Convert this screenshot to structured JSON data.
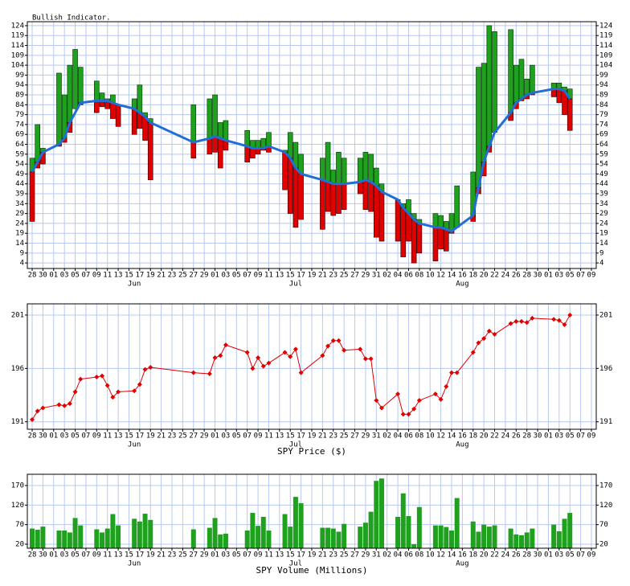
{
  "chart_data": [
    {
      "type": "range-bar",
      "title": "Bullish Indicator.",
      "x": [
        0,
        1,
        2,
        5,
        6,
        7,
        8,
        9,
        12,
        13,
        14,
        15,
        16,
        19,
        20,
        21,
        22,
        30,
        33,
        34,
        35,
        36,
        40,
        41,
        42,
        43,
        44,
        47,
        48,
        49,
        50,
        54,
        55,
        56,
        57,
        58,
        61,
        62,
        63,
        64,
        65,
        68,
        69,
        70,
        71,
        72,
        75,
        76,
        77,
        78,
        79,
        82,
        83,
        84,
        85,
        86,
        89,
        90,
        91,
        92,
        93,
        97,
        98,
        99,
        100
      ],
      "low": [
        25,
        52,
        54,
        63,
        65,
        70,
        82,
        84,
        80,
        83,
        82,
        77,
        73,
        69,
        72,
        66,
        46,
        57,
        59,
        60,
        52,
        61,
        55,
        57,
        59,
        61,
        60,
        41,
        29,
        22,
        26,
        21,
        30,
        28,
        29,
        31,
        39,
        31,
        30,
        17,
        15,
        15,
        7,
        15,
        4,
        9,
        5,
        11,
        10,
        19,
        22,
        25,
        39,
        48,
        60,
        70,
        76,
        82,
        86,
        87,
        89,
        88,
        85,
        79,
        71
      ],
      "high": [
        57,
        74,
        62,
        100,
        89,
        104,
        112,
        103,
        96,
        90,
        87,
        89,
        84,
        87,
        94,
        80,
        77,
        84,
        87,
        89,
        75,
        76,
        71,
        66,
        66,
        67,
        70,
        61,
        70,
        65,
        59,
        57,
        65,
        51,
        60,
        57,
        57,
        60,
        59,
        52,
        44,
        36,
        34,
        36,
        29,
        26,
        29,
        28,
        25,
        29,
        43,
        50,
        103,
        105,
        124,
        121,
        122,
        104,
        107,
        97,
        104,
        95,
        95,
        93,
        92
      ],
      "average": [
        50,
        55,
        60,
        64,
        67,
        75,
        80,
        85,
        86,
        86,
        86,
        85,
        84,
        82,
        80,
        78,
        75,
        65,
        67,
        68,
        67,
        66,
        63,
        62,
        62,
        62,
        63,
        60,
        57,
        52,
        49,
        46,
        45,
        44,
        44,
        44,
        45,
        46,
        45,
        43,
        40,
        36,
        32,
        29,
        26,
        24,
        22,
        22,
        21,
        20,
        22,
        28,
        42,
        55,
        63,
        70,
        80,
        85,
        87,
        89,
        90,
        92,
        92,
        91,
        87
      ],
      "up_color": "#1fa01f",
      "down_color": "#e00000",
      "line_color": "#1f6fd6",
      "xlim": [
        -0.9,
        104.9
      ],
      "ylim": [
        1.2,
        126
      ],
      "yticks": [
        4,
        9,
        14,
        19,
        24,
        29,
        34,
        39,
        44,
        49,
        54,
        59,
        64,
        69,
        74,
        79,
        84,
        89,
        94,
        99,
        104,
        109,
        114,
        119,
        124
      ],
      "xticks": [
        {
          "value": 0,
          "label": "28"
        },
        {
          "value": 2,
          "label": "30"
        },
        {
          "value": 4,
          "label": "01"
        },
        {
          "value": 6,
          "label": "03"
        },
        {
          "value": 8,
          "label": "05"
        },
        {
          "value": 10,
          "label": "07"
        },
        {
          "value": 12,
          "label": "09"
        },
        {
          "value": 14,
          "label": "11"
        },
        {
          "value": 16,
          "label": "13"
        },
        {
          "value": 18,
          "label": "15"
        },
        {
          "value": 20,
          "label": "17"
        },
        {
          "value": 22,
          "label": "19"
        },
        {
          "value": 24,
          "label": "21"
        },
        {
          "value": 26,
          "label": "23"
        },
        {
          "value": 28,
          "label": "25"
        },
        {
          "value": 30,
          "label": "27"
        },
        {
          "value": 32,
          "label": "29"
        },
        {
          "value": 34,
          "label": "01"
        },
        {
          "value": 36,
          "label": "03"
        },
        {
          "value": 38,
          "label": "05"
        },
        {
          "value": 40,
          "label": "07"
        },
        {
          "value": 42,
          "label": "09"
        },
        {
          "value": 44,
          "label": "11"
        },
        {
          "value": 46,
          "label": "13"
        },
        {
          "value": 48,
          "label": "15"
        },
        {
          "value": 50,
          "label": "17"
        },
        {
          "value": 52,
          "label": "19"
        },
        {
          "value": 54,
          "label": "21"
        },
        {
          "value": 56,
          "label": "23"
        },
        {
          "value": 58,
          "label": "25"
        },
        {
          "value": 60,
          "label": "27"
        },
        {
          "value": 62,
          "label": "29"
        },
        {
          "value": 64,
          "label": "31"
        },
        {
          "value": 66,
          "label": "02"
        },
        {
          "value": 68,
          "label": "04"
        },
        {
          "value": 70,
          "label": "06"
        },
        {
          "value": 72,
          "label": "08"
        },
        {
          "value": 74,
          "label": "10"
        },
        {
          "value": 76,
          "label": "12"
        },
        {
          "value": 78,
          "label": "14"
        },
        {
          "value": 80,
          "label": "16"
        },
        {
          "value": 82,
          "label": "18"
        },
        {
          "value": 84,
          "label": "20"
        },
        {
          "value": 86,
          "label": "22"
        },
        {
          "value": 88,
          "label": "24"
        },
        {
          "value": 90,
          "label": "26"
        },
        {
          "value": 92,
          "label": "28"
        },
        {
          "value": 94,
          "label": "30"
        },
        {
          "value": 96,
          "label": "01"
        },
        {
          "value": 98,
          "label": "03"
        },
        {
          "value": 100,
          "label": "05"
        },
        {
          "value": 102,
          "label": "07"
        },
        {
          "value": 104,
          "label": "09"
        }
      ],
      "month_labels": [
        {
          "value": 19,
          "label": "Jun"
        },
        {
          "value": 49,
          "label": "Jul"
        },
        {
          "value": 80,
          "label": "Aug"
        }
      ],
      "grid": true
    },
    {
      "type": "line",
      "xlabel": "SPY Price ($)",
      "x": [
        0,
        1,
        2,
        5,
        6,
        7,
        8,
        9,
        12,
        13,
        14,
        15,
        16,
        19,
        20,
        21,
        22,
        30,
        33,
        34,
        35,
        36,
        40,
        41,
        42,
        43,
        44,
        47,
        48,
        49,
        50,
        54,
        55,
        56,
        57,
        58,
        61,
        62,
        63,
        64,
        65,
        68,
        69,
        70,
        71,
        72,
        75,
        76,
        77,
        78,
        79,
        82,
        83,
        84,
        85,
        86,
        89,
        90,
        91,
        92,
        93,
        97,
        98,
        99,
        100
      ],
      "values": [
        191.2,
        192,
        192.3,
        192.6,
        192.5,
        192.7,
        193.8,
        195.0,
        195.2,
        195.3,
        194.4,
        193.3,
        193.8,
        193.9,
        194.5,
        195.9,
        196.1,
        195.6,
        195.5,
        197.0,
        197.2,
        198.2,
        197.5,
        196.0,
        197.0,
        196.2,
        196.5,
        197.5,
        197.1,
        197.8,
        195.6,
        197.2,
        198.1,
        198.6,
        198.6,
        197.7,
        197.8,
        196.9,
        196.9,
        193.0,
        192.3,
        193.6,
        191.7,
        191.7,
        192.2,
        193.0,
        193.6,
        193.1,
        194.3,
        195.6,
        195.6,
        197.5,
        198.4,
        198.8,
        199.5,
        199.2,
        200.2,
        200.4,
        200.4,
        200.3,
        200.7,
        200.6,
        200.5,
        200.1,
        201.0
      ],
      "color": "#e00000",
      "xlim": [
        -0.9,
        104.9
      ],
      "ylim": [
        190.3,
        202.05
      ],
      "yticks": [
        191,
        196,
        201
      ],
      "xticks": [
        {
          "value": 0,
          "label": "28"
        },
        {
          "value": 2,
          "label": "30"
        },
        {
          "value": 4,
          "label": "01"
        },
        {
          "value": 6,
          "label": "03"
        },
        {
          "value": 8,
          "label": "05"
        },
        {
          "value": 10,
          "label": "07"
        },
        {
          "value": 12,
          "label": "09"
        },
        {
          "value": 14,
          "label": "11"
        },
        {
          "value": 16,
          "label": "13"
        },
        {
          "value": 18,
          "label": "15"
        },
        {
          "value": 20,
          "label": "17"
        },
        {
          "value": 22,
          "label": "19"
        },
        {
          "value": 24,
          "label": "21"
        },
        {
          "value": 26,
          "label": "23"
        },
        {
          "value": 28,
          "label": "25"
        },
        {
          "value": 30,
          "label": "27"
        },
        {
          "value": 32,
          "label": "29"
        },
        {
          "value": 34,
          "label": "01"
        },
        {
          "value": 36,
          "label": "03"
        },
        {
          "value": 38,
          "label": "05"
        },
        {
          "value": 40,
          "label": "07"
        },
        {
          "value": 42,
          "label": "09"
        },
        {
          "value": 44,
          "label": "11"
        },
        {
          "value": 46,
          "label": "13"
        },
        {
          "value": 48,
          "label": "15"
        },
        {
          "value": 50,
          "label": "17"
        },
        {
          "value": 52,
          "label": "19"
        },
        {
          "value": 54,
          "label": "21"
        },
        {
          "value": 56,
          "label": "23"
        },
        {
          "value": 58,
          "label": "25"
        },
        {
          "value": 60,
          "label": "27"
        },
        {
          "value": 62,
          "label": "29"
        },
        {
          "value": 64,
          "label": "31"
        },
        {
          "value": 66,
          "label": "02"
        },
        {
          "value": 68,
          "label": "04"
        },
        {
          "value": 70,
          "label": "06"
        },
        {
          "value": 72,
          "label": "08"
        },
        {
          "value": 74,
          "label": "10"
        },
        {
          "value": 76,
          "label": "12"
        },
        {
          "value": 78,
          "label": "14"
        },
        {
          "value": 80,
          "label": "16"
        },
        {
          "value": 82,
          "label": "18"
        },
        {
          "value": 84,
          "label": "20"
        },
        {
          "value": 86,
          "label": "22"
        },
        {
          "value": 88,
          "label": "24"
        },
        {
          "value": 90,
          "label": "26"
        },
        {
          "value": 92,
          "label": "28"
        },
        {
          "value": 94,
          "label": "30"
        },
        {
          "value": 96,
          "label": "01"
        },
        {
          "value": 98,
          "label": "03"
        },
        {
          "value": 100,
          "label": "05"
        },
        {
          "value": 102,
          "label": "07"
        },
        {
          "value": 104,
          "label": "09"
        }
      ],
      "month_labels": [
        {
          "value": 19,
          "label": "Jun"
        },
        {
          "value": 49,
          "label": "Jul"
        },
        {
          "value": 80,
          "label": "Aug"
        }
      ],
      "grid": true
    },
    {
      "type": "bar",
      "xlabel": "SPY Volume (Millions)",
      "x": [
        0,
        1,
        2,
        5,
        6,
        7,
        8,
        9,
        12,
        13,
        14,
        15,
        16,
        19,
        20,
        21,
        22,
        30,
        33,
        34,
        35,
        36,
        40,
        41,
        42,
        43,
        44,
        47,
        48,
        49,
        50,
        54,
        55,
        56,
        57,
        58,
        61,
        62,
        63,
        64,
        65,
        68,
        69,
        70,
        71,
        72,
        75,
        76,
        77,
        78,
        79,
        82,
        83,
        84,
        85,
        86,
        89,
        90,
        91,
        92,
        93,
        97,
        98,
        99,
        100
      ],
      "values": [
        60,
        57,
        65,
        55,
        55,
        50,
        87,
        68,
        58,
        50,
        60,
        97,
        68,
        85,
        78,
        98,
        82,
        58,
        62,
        87,
        45,
        47,
        55,
        100,
        67,
        90,
        55,
        97,
        65,
        141,
        125,
        62,
        62,
        60,
        52,
        72,
        65,
        75,
        103,
        182,
        188,
        90,
        150,
        92,
        20,
        115,
        68,
        68,
        64,
        55,
        138,
        78,
        52,
        70,
        65,
        68,
        60,
        45,
        43,
        50,
        60,
        70,
        53,
        85,
        100
      ],
      "color": "#1fa01f",
      "xlim": [
        -0.9,
        104.9
      ],
      "ylim": [
        9.7,
        198.8
      ],
      "yticks": [
        20,
        70,
        120,
        170
      ],
      "xticks": [
        {
          "value": 0,
          "label": "28"
        },
        {
          "value": 2,
          "label": "30"
        },
        {
          "value": 4,
          "label": "01"
        },
        {
          "value": 6,
          "label": "03"
        },
        {
          "value": 8,
          "label": "05"
        },
        {
          "value": 10,
          "label": "07"
        },
        {
          "value": 12,
          "label": "09"
        },
        {
          "value": 14,
          "label": "11"
        },
        {
          "value": 16,
          "label": "13"
        },
        {
          "value": 18,
          "label": "15"
        },
        {
          "value": 20,
          "label": "17"
        },
        {
          "value": 22,
          "label": "19"
        },
        {
          "value": 24,
          "label": "21"
        },
        {
          "value": 26,
          "label": "23"
        },
        {
          "value": 28,
          "label": "25"
        },
        {
          "value": 30,
          "label": "27"
        },
        {
          "value": 32,
          "label": "29"
        },
        {
          "value": 34,
          "label": "01"
        },
        {
          "value": 36,
          "label": "03"
        },
        {
          "value": 38,
          "label": "05"
        },
        {
          "value": 40,
          "label": "07"
        },
        {
          "value": 42,
          "label": "09"
        },
        {
          "value": 44,
          "label": "11"
        },
        {
          "value": 46,
          "label": "13"
        },
        {
          "value": 48,
          "label": "15"
        },
        {
          "value": 50,
          "label": "17"
        },
        {
          "value": 52,
          "label": "19"
        },
        {
          "value": 54,
          "label": "21"
        },
        {
          "value": 56,
          "label": "23"
        },
        {
          "value": 58,
          "label": "25"
        },
        {
          "value": 60,
          "label": "27"
        },
        {
          "value": 62,
          "label": "29"
        },
        {
          "value": 64,
          "label": "31"
        },
        {
          "value": 66,
          "label": "02"
        },
        {
          "value": 68,
          "label": "04"
        },
        {
          "value": 70,
          "label": "06"
        },
        {
          "value": 72,
          "label": "08"
        },
        {
          "value": 74,
          "label": "10"
        },
        {
          "value": 76,
          "label": "12"
        },
        {
          "value": 78,
          "label": "14"
        },
        {
          "value": 80,
          "label": "16"
        },
        {
          "value": 82,
          "label": "18"
        },
        {
          "value": 84,
          "label": "20"
        },
        {
          "value": 86,
          "label": "22"
        },
        {
          "value": 88,
          "label": "24"
        },
        {
          "value": 90,
          "label": "26"
        },
        {
          "value": 92,
          "label": "28"
        },
        {
          "value": 94,
          "label": "30"
        },
        {
          "value": 96,
          "label": "01"
        },
        {
          "value": 98,
          "label": "03"
        },
        {
          "value": 100,
          "label": "05"
        },
        {
          "value": 102,
          "label": "07"
        },
        {
          "value": 104,
          "label": "09"
        }
      ],
      "month_labels": [
        {
          "value": 19,
          "label": "Jun"
        },
        {
          "value": 49,
          "label": "Jul"
        },
        {
          "value": 80,
          "label": "Aug"
        }
      ],
      "grid": true
    }
  ]
}
